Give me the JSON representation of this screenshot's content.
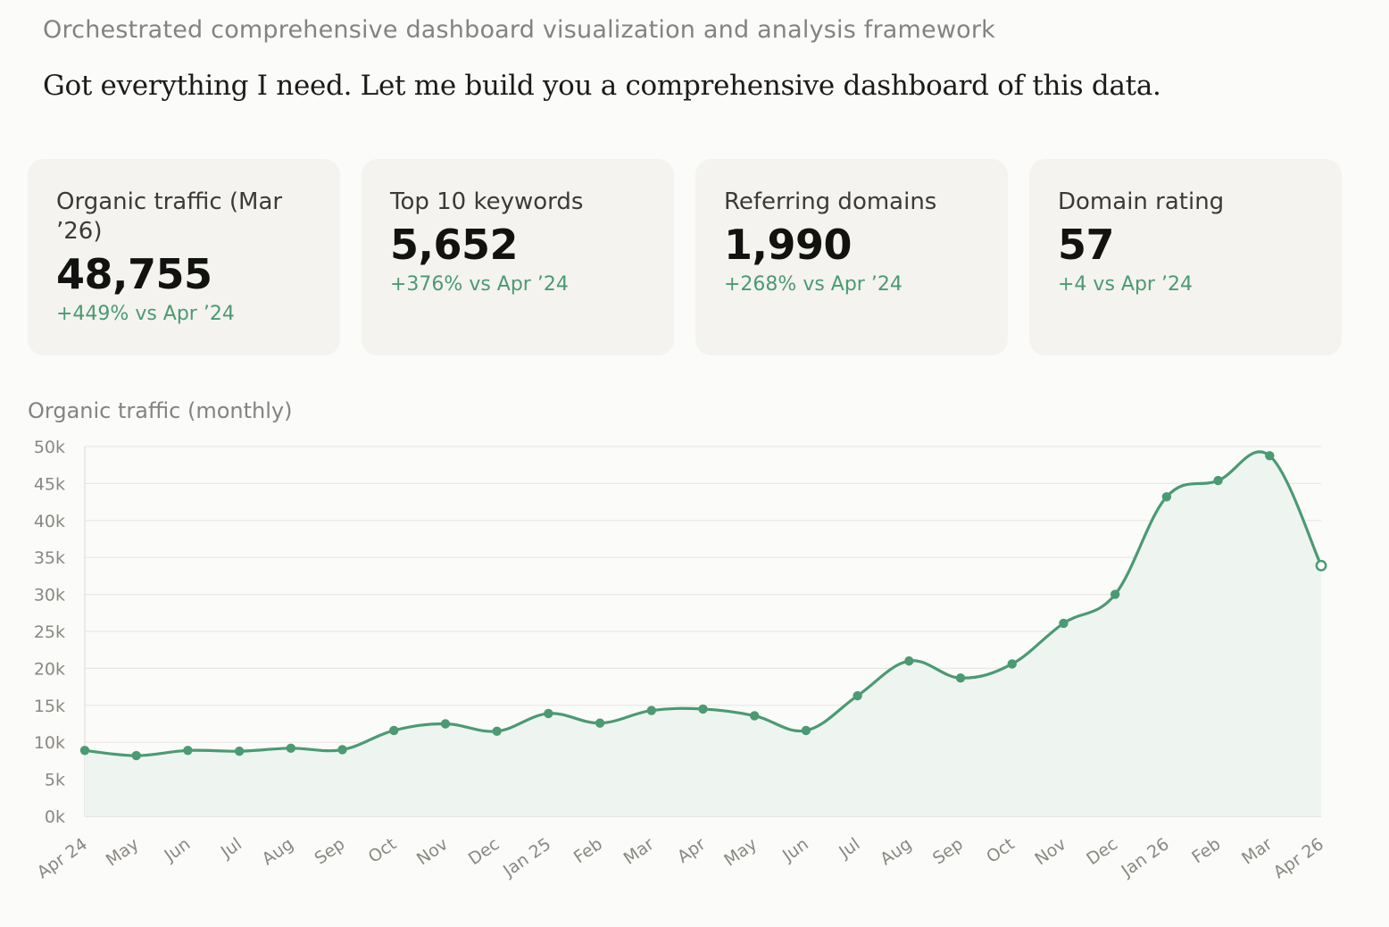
{
  "header": {
    "subtitle": "Orchestrated comprehensive dashboard visualization and analysis framework",
    "message": "Got everything I need. Let me build you a comprehensive dashboard of this data."
  },
  "cards": [
    {
      "label": "Organic traffic (Mar ’26)",
      "value": "48,755",
      "delta": "+449% vs Apr ’24"
    },
    {
      "label": "Top 10 keywords",
      "value": "5,652",
      "delta": "+376% vs Apr ’24"
    },
    {
      "label": "Referring domains",
      "value": "1,990",
      "delta": "+268% vs Apr ’24"
    },
    {
      "label": "Domain rating",
      "value": "57",
      "delta": "+4 vs Apr ’24"
    }
  ],
  "colors": {
    "accent": "#4b9a73",
    "area_fill": "#eef5f0",
    "card_bg": "#f4f3ef",
    "page_bg": "#fbfbf9"
  },
  "chart_data": {
    "type": "area",
    "title": "Organic traffic (monthly)",
    "x": [
      "Apr 24",
      "May",
      "Jun",
      "Jul",
      "Aug",
      "Sep",
      "Oct",
      "Nov",
      "Dec",
      "Jan 25",
      "Feb",
      "Mar",
      "Apr",
      "May",
      "Jun",
      "Jul",
      "Aug",
      "Sep",
      "Oct",
      "Nov",
      "Dec",
      "Jan 26",
      "Feb",
      "Mar",
      "Apr 26"
    ],
    "series": [
      {
        "values": [
          8900,
          8200,
          8900,
          8800,
          9200,
          9000,
          11600,
          12500,
          11500,
          13900,
          12600,
          14300,
          14500,
          13600,
          11600,
          16300,
          21000,
          18700,
          20600,
          26100,
          30000,
          43200,
          45400,
          48755,
          33900
        ]
      }
    ],
    "y_ticks": [
      "0k",
      "5k",
      "10k",
      "15k",
      "20k",
      "25k",
      "30k",
      "35k",
      "40k",
      "45k",
      "50k"
    ],
    "ylim": [
      0,
      50000
    ],
    "grid": true,
    "smooth": true,
    "markers": true
  }
}
